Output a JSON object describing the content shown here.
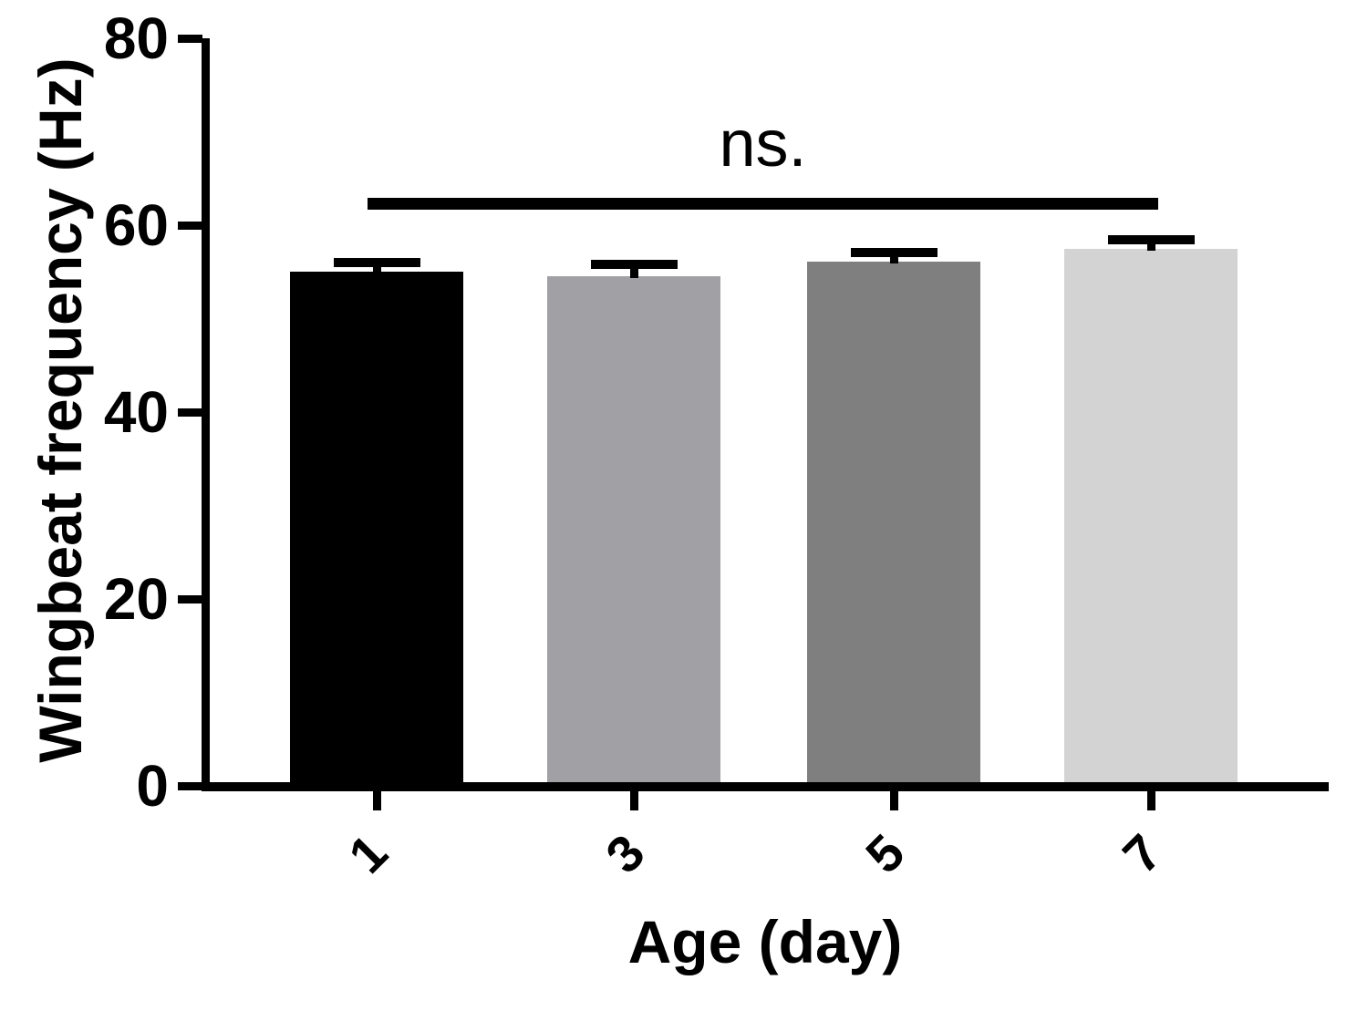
{
  "figure": {
    "background": "#ffffff",
    "annotation": {
      "label": "ns.",
      "from_category": "1",
      "to_category": "7",
      "line_y_value": 62.3
    }
  },
  "chart_data": {
    "type": "bar",
    "title": "",
    "xlabel": "Age (day)",
    "ylabel": "Wingbeat frequency (Hz)",
    "categories": [
      "1",
      "3",
      "5",
      "7"
    ],
    "series": [
      {
        "name": "Wingbeat frequency",
        "values": [
          55.0,
          54.5,
          56.1,
          57.5
        ],
        "errors_plus": [
          1.0,
          1.3,
          1.0,
          0.9
        ]
      }
    ],
    "bar_colors": [
      "#000000",
      "#a1a1a5",
      "#7f7f7f",
      "#d3d3d3"
    ],
    "axis_color": "#000000",
    "ylim": [
      0,
      80
    ],
    "yticks": [
      0,
      20,
      40,
      60,
      80
    ],
    "grid": false,
    "legend": "none",
    "error_bars": "upper SEM with caps"
  }
}
